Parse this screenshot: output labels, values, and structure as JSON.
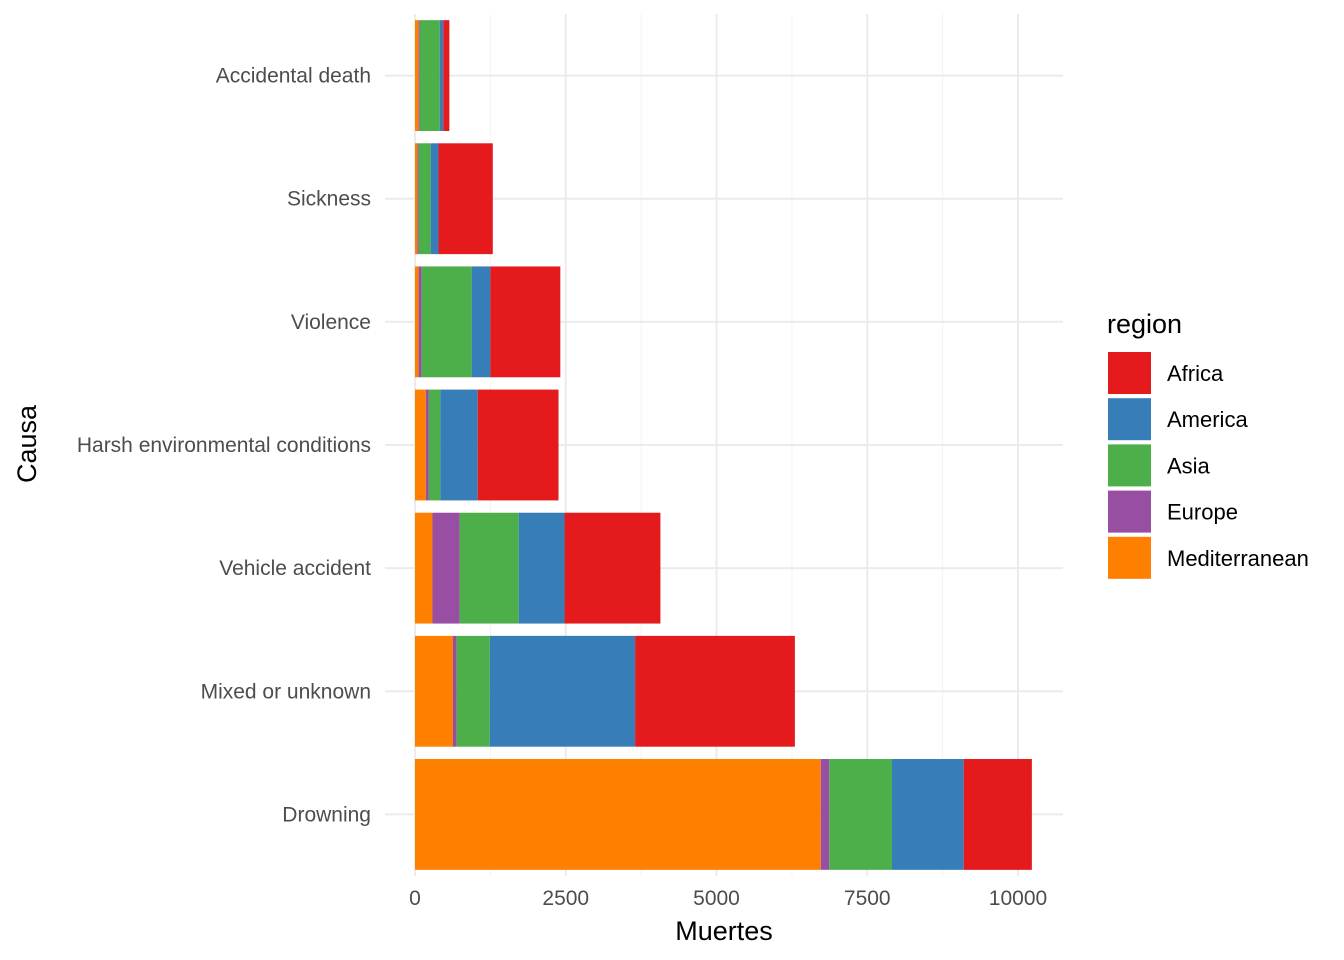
{
  "chart_data": {
    "type": "bar",
    "orientation": "horizontal",
    "stacked": true,
    "title": "",
    "xlabel": "Muertes",
    "ylabel": "Causa",
    "xlim": [
      0,
      10700
    ],
    "x_ticks": [
      0,
      2500,
      5000,
      7500,
      10000
    ],
    "grid": true,
    "legend_title": "region",
    "legend_position": "right",
    "categories": [
      "Accidental death",
      "Sickness ",
      "Violence",
      "Harsh environmental conditions ",
      "Vehicle accident ",
      "Mixed or unknown",
      "Drowning"
    ],
    "stack_order": [
      "Mediterranean",
      "Europe",
      "Asia",
      "America",
      "Africa"
    ],
    "series": [
      {
        "name": "Africa",
        "color": "#E41A1C",
        "values": [
          100,
          900,
          1160,
          1340,
          1590,
          2650,
          1130
        ]
      },
      {
        "name": "America",
        "color": "#377EB8",
        "values": [
          60,
          130,
          310,
          620,
          760,
          2410,
          1190
        ]
      },
      {
        "name": "Asia",
        "color": "#4DAF4A",
        "values": [
          330,
          200,
          830,
          190,
          980,
          550,
          1040
        ]
      },
      {
        "name": "Europe",
        "color": "#984EA3",
        "values": [
          20,
          20,
          50,
          50,
          450,
          60,
          140
        ]
      },
      {
        "name": "Mediterranean",
        "color": "#FF7F00",
        "values": [
          60,
          40,
          60,
          180,
          290,
          630,
          6730
        ]
      }
    ]
  }
}
